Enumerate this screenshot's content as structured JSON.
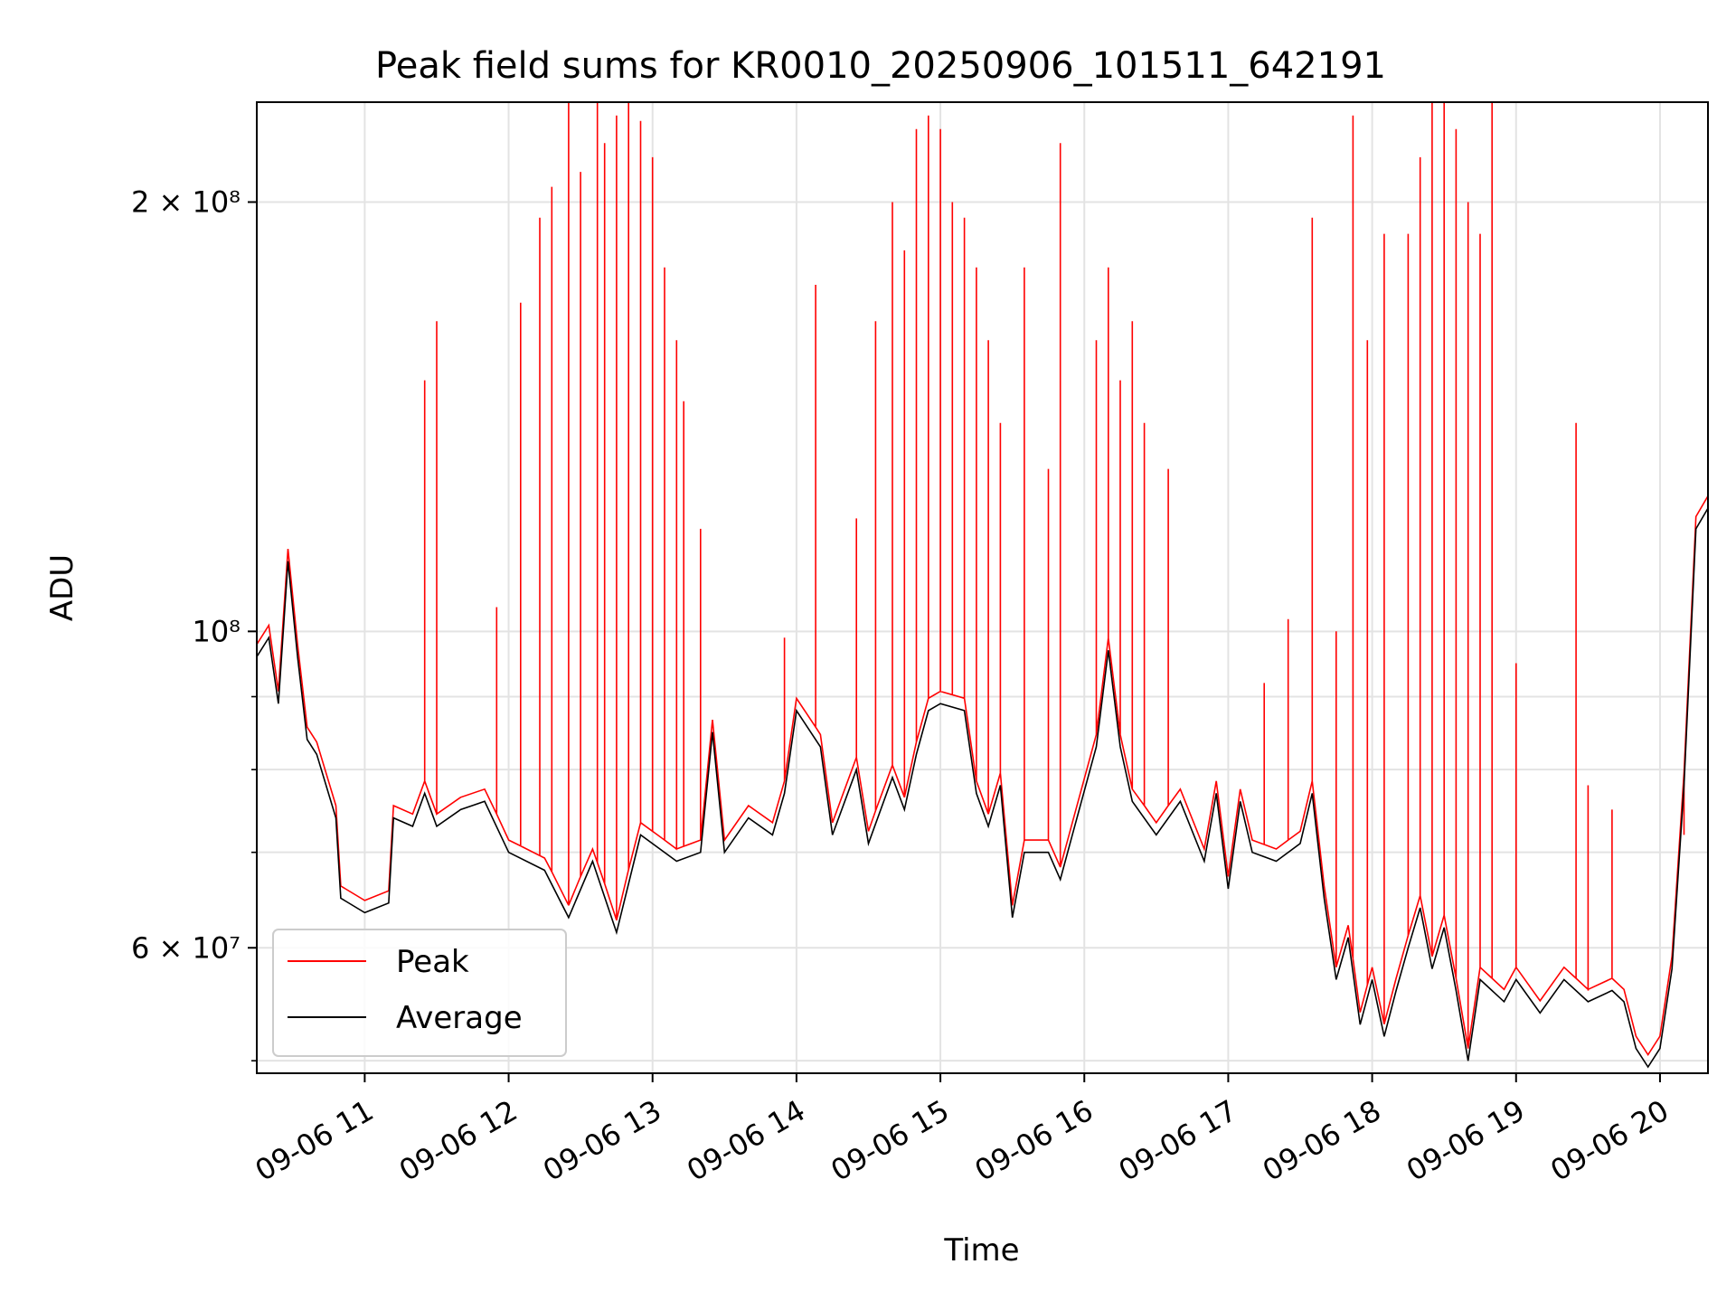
{
  "chart_data": {
    "type": "line",
    "title": "Peak field sums for KR0010_20250906_101511_642191",
    "xlabel": "Time",
    "ylabel": "ADU",
    "yscale": "log",
    "grid": true,
    "legend_position": "lower-left",
    "xlim": [
      "2025-09-06 10:15",
      "2025-09-06 20:20"
    ],
    "ylim": [
      49000000,
      235000000
    ],
    "x_ticks": [
      {
        "at": "2025-09-06 11:00",
        "label": "09-06 11"
      },
      {
        "at": "2025-09-06 12:00",
        "label": "09-06 12"
      },
      {
        "at": "2025-09-06 13:00",
        "label": "09-06 13"
      },
      {
        "at": "2025-09-06 14:00",
        "label": "09-06 14"
      },
      {
        "at": "2025-09-06 15:00",
        "label": "09-06 15"
      },
      {
        "at": "2025-09-06 16:00",
        "label": "09-06 16"
      },
      {
        "at": "2025-09-06 17:00",
        "label": "09-06 17"
      },
      {
        "at": "2025-09-06 18:00",
        "label": "09-06 18"
      },
      {
        "at": "2025-09-06 19:00",
        "label": "09-06 19"
      },
      {
        "at": "2025-09-06 20:00",
        "label": "09-06 20"
      }
    ],
    "y_major_ticks": [
      {
        "value": 60000000,
        "label": "6 × 10⁷"
      },
      {
        "value": 100000000,
        "label": "10⁸"
      },
      {
        "value": 200000000,
        "label": "2 × 10⁸"
      }
    ],
    "y_minor_ticks": [
      50000000,
      70000000,
      80000000,
      90000000
    ],
    "series": [
      {
        "name": "Average",
        "color": "#000000"
      },
      {
        "name": "Peak",
        "color": "#ff0000"
      }
    ],
    "average_points": [
      [
        "2025-09-06 10:15",
        96000000
      ],
      [
        "2025-09-06 10:20",
        99000000
      ],
      [
        "2025-09-06 10:24",
        89000000
      ],
      [
        "2025-09-06 10:28",
        112000000
      ],
      [
        "2025-09-06 10:32",
        96000000
      ],
      [
        "2025-09-06 10:36",
        84000000
      ],
      [
        "2025-09-06 10:40",
        82000000
      ],
      [
        "2025-09-06 10:48",
        74000000
      ],
      [
        "2025-09-06 10:50",
        65000000
      ],
      [
        "2025-09-06 11:00",
        63500000
      ],
      [
        "2025-09-06 11:10",
        64500000
      ],
      [
        "2025-09-06 11:12",
        74000000
      ],
      [
        "2025-09-06 11:20",
        73000000
      ],
      [
        "2025-09-06 11:25",
        77000000
      ],
      [
        "2025-09-06 11:30",
        73000000
      ],
      [
        "2025-09-06 11:40",
        75000000
      ],
      [
        "2025-09-06 11:50",
        76000000
      ],
      [
        "2025-09-06 12:00",
        70000000
      ],
      [
        "2025-09-06 12:15",
        68000000
      ],
      [
        "2025-09-06 12:25",
        63000000
      ],
      [
        "2025-09-06 12:35",
        69000000
      ],
      [
        "2025-09-06 12:45",
        61500000
      ],
      [
        "2025-09-06 12:55",
        72000000
      ],
      [
        "2025-09-06 13:10",
        69000000
      ],
      [
        "2025-09-06 13:20",
        70000000
      ],
      [
        "2025-09-06 13:25",
        85000000
      ],
      [
        "2025-09-06 13:30",
        70000000
      ],
      [
        "2025-09-06 13:40",
        74000000
      ],
      [
        "2025-09-06 13:50",
        72000000
      ],
      [
        "2025-09-06 13:55",
        77000000
      ],
      [
        "2025-09-06 14:00",
        88000000
      ],
      [
        "2025-09-06 14:10",
        83000000
      ],
      [
        "2025-09-06 14:15",
        72000000
      ],
      [
        "2025-09-06 14:25",
        80000000
      ],
      [
        "2025-09-06 14:30",
        71000000
      ],
      [
        "2025-09-06 14:40",
        79000000
      ],
      [
        "2025-09-06 14:45",
        75000000
      ],
      [
        "2025-09-06 14:50",
        82000000
      ],
      [
        "2025-09-06 14:55",
        88000000
      ],
      [
        "2025-09-06 15:00",
        89000000
      ],
      [
        "2025-09-06 15:10",
        88000000
      ],
      [
        "2025-09-06 15:15",
        77000000
      ],
      [
        "2025-09-06 15:20",
        73000000
      ],
      [
        "2025-09-06 15:25",
        78000000
      ],
      [
        "2025-09-06 15:30",
        63000000
      ],
      [
        "2025-09-06 15:35",
        70000000
      ],
      [
        "2025-09-06 15:45",
        70000000
      ],
      [
        "2025-09-06 15:50",
        67000000
      ],
      [
        "2025-09-06 15:55",
        72000000
      ],
      [
        "2025-09-06 16:05",
        83000000
      ],
      [
        "2025-09-06 16:10",
        97000000
      ],
      [
        "2025-09-06 16:15",
        83000000
      ],
      [
        "2025-09-06 16:20",
        76000000
      ],
      [
        "2025-09-06 16:30",
        72000000
      ],
      [
        "2025-09-06 16:40",
        76000000
      ],
      [
        "2025-09-06 16:50",
        69000000
      ],
      [
        "2025-09-06 16:55",
        77000000
      ],
      [
        "2025-09-06 17:00",
        66000000
      ],
      [
        "2025-09-06 17:05",
        76000000
      ],
      [
        "2025-09-06 17:10",
        70000000
      ],
      [
        "2025-09-06 17:20",
        69000000
      ],
      [
        "2025-09-06 17:30",
        71000000
      ],
      [
        "2025-09-06 17:35",
        77000000
      ],
      [
        "2025-09-06 17:40",
        65000000
      ],
      [
        "2025-09-06 17:45",
        57000000
      ],
      [
        "2025-09-06 17:50",
        61000000
      ],
      [
        "2025-09-06 17:55",
        53000000
      ],
      [
        "2025-09-06 18:00",
        57000000
      ],
      [
        "2025-09-06 18:05",
        52000000
      ],
      [
        "2025-09-06 18:10",
        56000000
      ],
      [
        "2025-09-06 18:15",
        60000000
      ],
      [
        "2025-09-06 18:20",
        64000000
      ],
      [
        "2025-09-06 18:25",
        58000000
      ],
      [
        "2025-09-06 18:30",
        62000000
      ],
      [
        "2025-09-06 18:35",
        56000000
      ],
      [
        "2025-09-06 18:40",
        50000000
      ],
      [
        "2025-09-06 18:45",
        57000000
      ],
      [
        "2025-09-06 18:55",
        55000000
      ],
      [
        "2025-09-06 19:00",
        57000000
      ],
      [
        "2025-09-06 19:10",
        54000000
      ],
      [
        "2025-09-06 19:20",
        57000000
      ],
      [
        "2025-09-06 19:30",
        55000000
      ],
      [
        "2025-09-06 19:40",
        56000000
      ],
      [
        "2025-09-06 19:45",
        55000000
      ],
      [
        "2025-09-06 19:50",
        51000000
      ],
      [
        "2025-09-06 19:55",
        49500000
      ],
      [
        "2025-09-06 20:00",
        51000000
      ],
      [
        "2025-09-06 20:05",
        58000000
      ],
      [
        "2025-09-06 20:10",
        78000000
      ],
      [
        "2025-09-06 20:15",
        118000000
      ],
      [
        "2025-09-06 20:20",
        122000000
      ]
    ],
    "peak_spikes": [
      [
        "2025-09-06 11:25",
        150000000
      ],
      [
        "2025-09-06 11:30",
        165000000
      ],
      [
        "2025-09-06 11:55",
        104000000
      ],
      [
        "2025-09-06 12:05",
        170000000
      ],
      [
        "2025-09-06 12:13",
        195000000
      ],
      [
        "2025-09-06 12:18",
        205000000
      ],
      [
        "2025-09-06 12:25",
        235000000
      ],
      [
        "2025-09-06 12:30",
        210000000
      ],
      [
        "2025-09-06 12:37",
        235000000
      ],
      [
        "2025-09-06 12:40",
        220000000
      ],
      [
        "2025-09-06 12:45",
        230000000
      ],
      [
        "2025-09-06 12:50",
        235000000
      ],
      [
        "2025-09-06 12:55",
        228000000
      ],
      [
        "2025-09-06 13:00",
        215000000
      ],
      [
        "2025-09-06 13:05",
        180000000
      ],
      [
        "2025-09-06 13:10",
        160000000
      ],
      [
        "2025-09-06 13:13",
        145000000
      ],
      [
        "2025-09-06 13:20",
        118000000
      ],
      [
        "2025-09-06 13:55",
        99000000
      ],
      [
        "2025-09-06 14:08",
        175000000
      ],
      [
        "2025-09-06 14:25",
        120000000
      ],
      [
        "2025-09-06 14:33",
        165000000
      ],
      [
        "2025-09-06 14:40",
        200000000
      ],
      [
        "2025-09-06 14:45",
        185000000
      ],
      [
        "2025-09-06 14:50",
        225000000
      ],
      [
        "2025-09-06 14:55",
        230000000
      ],
      [
        "2025-09-06 15:00",
        225000000
      ],
      [
        "2025-09-06 15:05",
        200000000
      ],
      [
        "2025-09-06 15:10",
        195000000
      ],
      [
        "2025-09-06 15:15",
        180000000
      ],
      [
        "2025-09-06 15:20",
        160000000
      ],
      [
        "2025-09-06 15:25",
        140000000
      ],
      [
        "2025-09-06 15:35",
        180000000
      ],
      [
        "2025-09-06 15:45",
        130000000
      ],
      [
        "2025-09-06 15:50",
        220000000
      ],
      [
        "2025-09-06 16:05",
        160000000
      ],
      [
        "2025-09-06 16:10",
        180000000
      ],
      [
        "2025-09-06 16:15",
        150000000
      ],
      [
        "2025-09-06 16:20",
        165000000
      ],
      [
        "2025-09-06 16:25",
        140000000
      ],
      [
        "2025-09-06 16:35",
        130000000
      ],
      [
        "2025-09-06 17:15",
        92000000
      ],
      [
        "2025-09-06 17:25",
        102000000
      ],
      [
        "2025-09-06 17:35",
        195000000
      ],
      [
        "2025-09-06 17:45",
        100000000
      ],
      [
        "2025-09-06 17:52",
        230000000
      ],
      [
        "2025-09-06 17:58",
        160000000
      ],
      [
        "2025-09-06 18:05",
        190000000
      ],
      [
        "2025-09-06 18:15",
        190000000
      ],
      [
        "2025-09-06 18:20",
        215000000
      ],
      [
        "2025-09-06 18:25",
        235000000
      ],
      [
        "2025-09-06 18:30",
        235000000
      ],
      [
        "2025-09-06 18:35",
        225000000
      ],
      [
        "2025-09-06 18:40",
        200000000
      ],
      [
        "2025-09-06 18:45",
        190000000
      ],
      [
        "2025-09-06 18:50",
        235000000
      ],
      [
        "2025-09-06 19:00",
        95000000
      ],
      [
        "2025-09-06 19:25",
        140000000
      ],
      [
        "2025-09-06 19:30",
        78000000
      ],
      [
        "2025-09-06 19:40",
        75000000
      ],
      [
        "2025-09-06 20:10",
        72000000
      ]
    ]
  }
}
